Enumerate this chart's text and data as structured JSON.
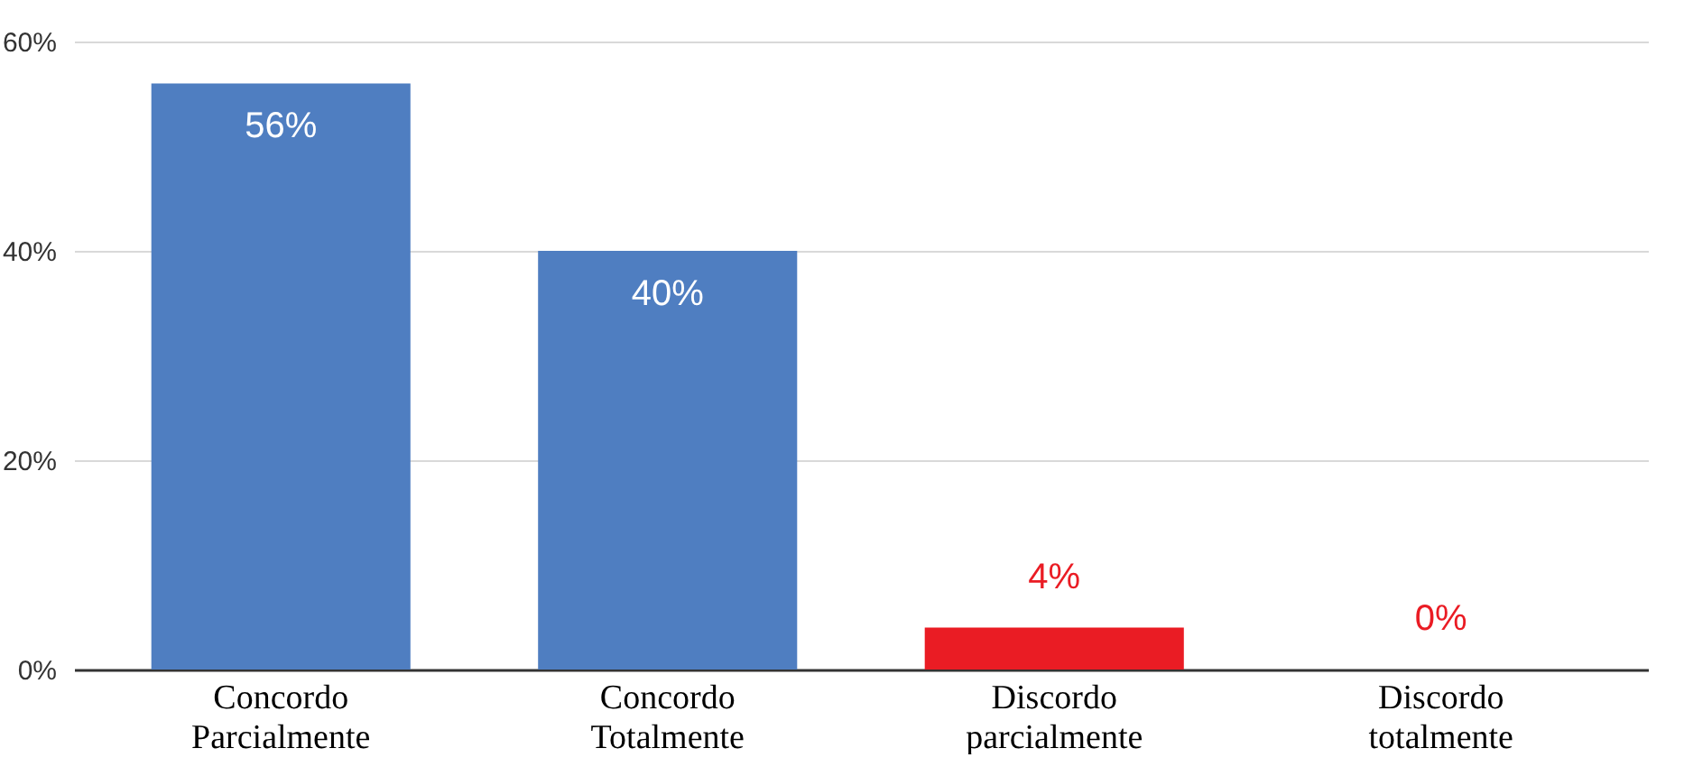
{
  "chart_data": {
    "type": "bar",
    "categories": [
      "Concordo Parcialmente",
      "Concordo Totalmente",
      "Discordo parcialmente",
      "Discordo totalmente"
    ],
    "values": [
      56,
      40,
      4,
      0
    ],
    "colors": [
      "#4f7ec1",
      "#4f7ec1",
      "#ea1c24",
      "#ea1c24"
    ],
    "ylim": [
      0,
      60
    ],
    "yticks": [
      {
        "value": 0,
        "label": "0%"
      },
      {
        "value": 20,
        "label": "20%"
      },
      {
        "value": 40,
        "label": "40%"
      },
      {
        "value": 60,
        "label": "60%"
      }
    ],
    "grid": "y",
    "data_labels": true,
    "value_labels": [
      "56%",
      "40%",
      "4%",
      "0%"
    ]
  }
}
